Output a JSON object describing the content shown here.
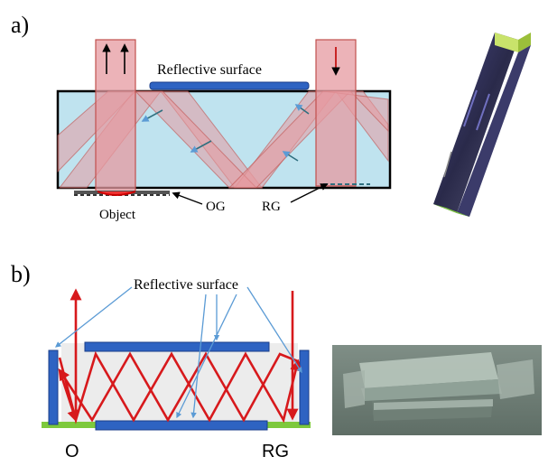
{
  "panel_a": {
    "label": "a)",
    "reflective_surface_label": "Reflective surface",
    "object_label": "Object",
    "og_label": "OG",
    "rg_label": "RG"
  },
  "panel_b": {
    "label": "b)",
    "reflective_surface_label": "Reflective surface",
    "o_label": "O",
    "rg_label": "RG"
  },
  "colors": {
    "waveguide_fill": "#bfe3ef",
    "beam_fill": "#e69aa0",
    "beam_stroke": "#c0504d",
    "mirror_blue": "#2e63c2",
    "arrow_red": "#d7191c",
    "grating_green": "#7dc93c",
    "leader_blue": "#5b9bd5"
  }
}
